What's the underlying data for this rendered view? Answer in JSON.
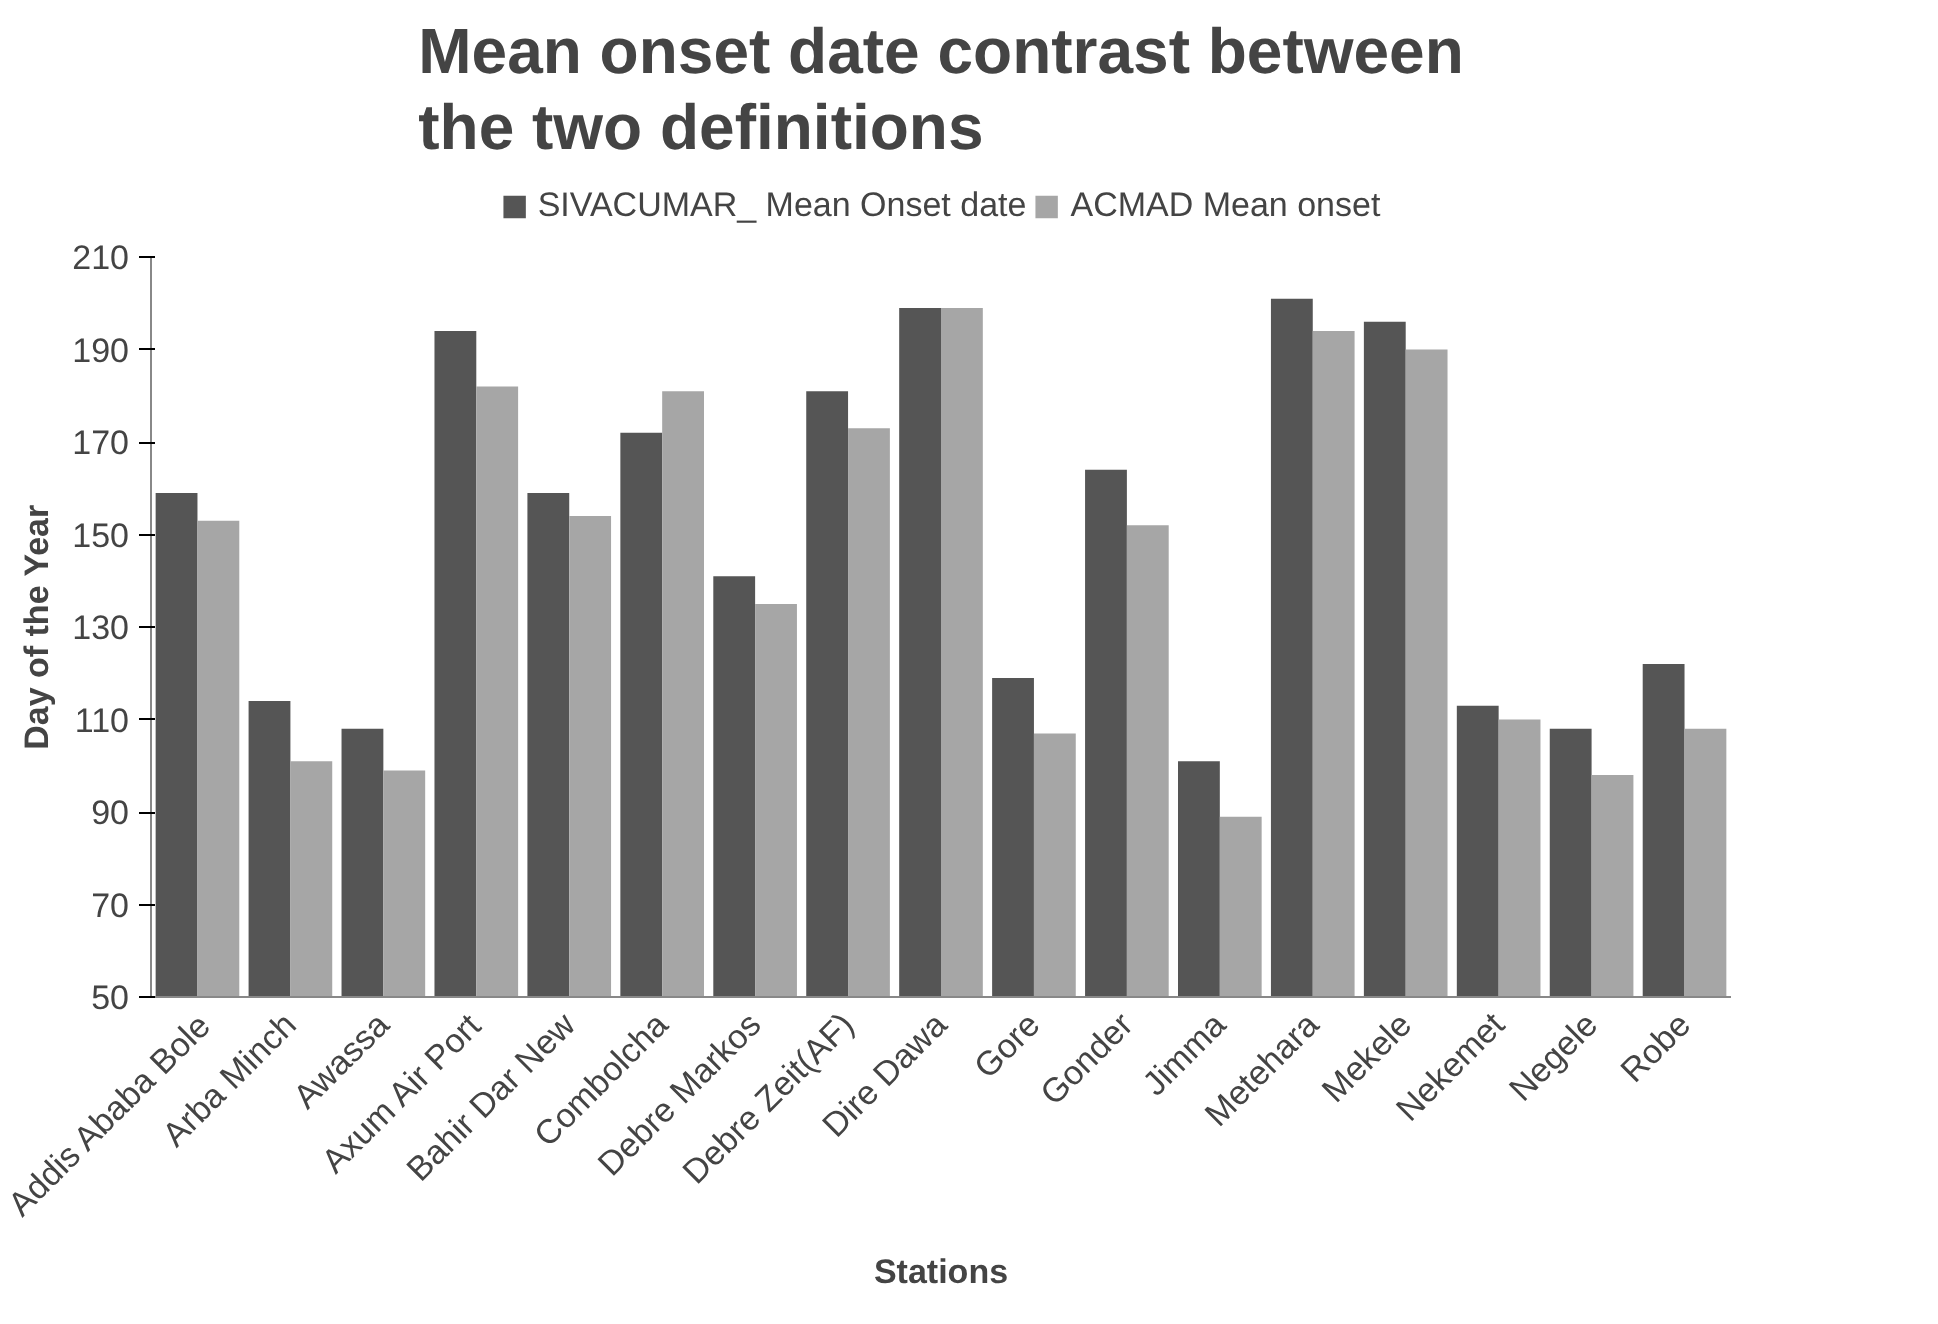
{
  "chart_data": {
    "type": "bar",
    "title": "Mean onset date contrast between the two definitions",
    "xlabel": "Stations",
    "ylabel": "Day of the Year",
    "categories": [
      "Addis Ababa Bole",
      "Arba Minch",
      "Awassa",
      "Axum Air Port",
      "Bahir Dar New",
      "Combolcha",
      "Debre Markos",
      "Debre Zeit(AF)",
      "Dire Dawa",
      "Gore",
      "Gonder",
      "Jimma",
      "Metehara",
      "Mekele",
      "Nekemet",
      "Negele",
      "Robe"
    ],
    "series": [
      {
        "name": "SIVACUMAR_ Mean Onset date",
        "color": "#555555",
        "values": [
          159,
          114,
          108,
          194,
          159,
          172,
          141,
          181,
          199,
          119,
          164,
          101,
          201,
          196,
          113,
          108,
          122
        ]
      },
      {
        "name": "ACMAD Mean onset",
        "color": "#a6a6a6",
        "values": [
          153,
          101,
          99,
          182,
          154,
          181,
          135,
          173,
          199,
          107,
          152,
          89,
          194,
          190,
          110,
          98,
          108
        ]
      }
    ],
    "ylim": [
      50,
      210
    ],
    "yticks": [
      50,
      70,
      90,
      110,
      130,
      150,
      170,
      190,
      210
    ],
    "grid": false,
    "legend": "top"
  }
}
